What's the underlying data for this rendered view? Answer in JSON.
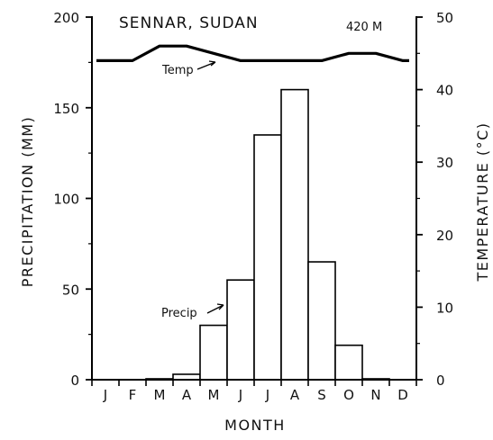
{
  "chart_data": {
    "type": "bar+line",
    "title": "SENNAR, SUDAN",
    "elevation": "420 M",
    "xlabel": "MONTH",
    "ylabel_left": "PRECIPITATION (MM)",
    "ylabel_right": "TEMPERATURE (°C)",
    "categories": [
      "J",
      "F",
      "M",
      "A",
      "M",
      "J",
      "J",
      "A",
      "S",
      "O",
      "N",
      "D"
    ],
    "precip_label": "Precip",
    "temp_label": "Temp",
    "precip_mm": [
      0,
      0,
      0.5,
      3,
      30,
      55,
      135,
      160,
      65,
      19,
      0.5,
      0
    ],
    "temp_c": [
      44,
      44,
      46,
      46,
      45,
      44,
      44,
      44,
      44,
      45,
      45,
      44
    ],
    "ylim_left": [
      0,
      200
    ],
    "ylim_right": [
      0,
      50
    ],
    "yticks_left": [
      "0",
      "50",
      "100",
      "150",
      "200"
    ],
    "yticks_right": [
      "0",
      "10",
      "20",
      "30",
      "40",
      "50"
    ],
    "grid": false,
    "color": "#000000"
  }
}
